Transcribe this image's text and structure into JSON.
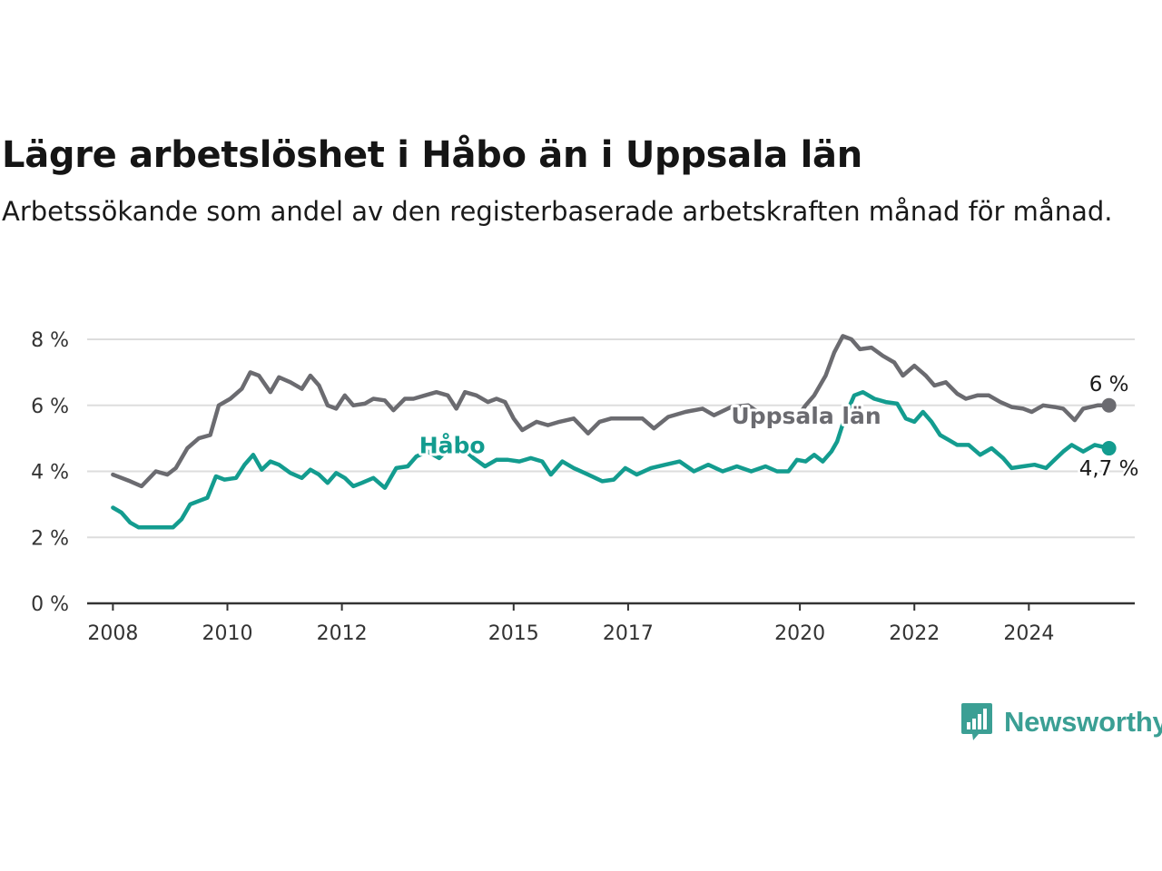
{
  "title": "Lägre arbetslöshet i Håbo än i Uppsala län",
  "subtitle": "Arbetssökande som andel av den registerbaserade arbetskraften månad för månad.",
  "brand": {
    "name": "Newsworthy",
    "icon": "newsworthy-logo-icon",
    "color": "#3b9f94"
  },
  "chart_data": {
    "type": "line",
    "title": "Lägre arbetslöshet i Håbo än i Uppsala län",
    "subtitle": "Arbetssökande som andel av den registerbaserade arbetskraften månad för månad.",
    "xlabel": "",
    "ylabel": "",
    "xlim": [
      2007.55,
      2025.85
    ],
    "ylim": [
      0,
      8
    ],
    "y_ticks": [
      0,
      2,
      4,
      6,
      8
    ],
    "y_tick_labels": [
      "0 %",
      "2 %",
      "4 %",
      "6 %",
      "8 %"
    ],
    "x_ticks": [
      2008,
      2010,
      2012,
      2015,
      2017,
      2020,
      2022,
      2024
    ],
    "x_tick_labels": [
      "2008",
      "2010",
      "2012",
      "2015",
      "2017",
      "2020",
      "2022",
      "2024"
    ],
    "grid": true,
    "legend": "inline labels",
    "series": [
      {
        "name": "Uppsala län",
        "color": "#6b6b70",
        "end_label": "6 %",
        "points": [
          [
            2008.0,
            3.9
          ],
          [
            2008.3,
            3.7
          ],
          [
            2008.5,
            3.55
          ],
          [
            2008.75,
            4.0
          ],
          [
            2008.95,
            3.9
          ],
          [
            2009.1,
            4.1
          ],
          [
            2009.3,
            4.7
          ],
          [
            2009.5,
            5.0
          ],
          [
            2009.7,
            5.1
          ],
          [
            2009.85,
            6.0
          ],
          [
            2010.05,
            6.2
          ],
          [
            2010.25,
            6.5
          ],
          [
            2010.4,
            7.0
          ],
          [
            2010.55,
            6.9
          ],
          [
            2010.75,
            6.4
          ],
          [
            2010.9,
            6.85
          ],
          [
            2011.1,
            6.7
          ],
          [
            2011.3,
            6.5
          ],
          [
            2011.45,
            6.9
          ],
          [
            2011.6,
            6.6
          ],
          [
            2011.75,
            6.0
          ],
          [
            2011.9,
            5.9
          ],
          [
            2012.05,
            6.3
          ],
          [
            2012.2,
            6.0
          ],
          [
            2012.4,
            6.05
          ],
          [
            2012.55,
            6.2
          ],
          [
            2012.75,
            6.15
          ],
          [
            2012.9,
            5.85
          ],
          [
            2013.1,
            6.2
          ],
          [
            2013.25,
            6.2
          ],
          [
            2013.45,
            6.3
          ],
          [
            2013.65,
            6.4
          ],
          [
            2013.85,
            6.3
          ],
          [
            2014.0,
            5.9
          ],
          [
            2014.15,
            6.4
          ],
          [
            2014.35,
            6.3
          ],
          [
            2014.55,
            6.1
          ],
          [
            2014.7,
            6.2
          ],
          [
            2014.85,
            6.1
          ],
          [
            2015.0,
            5.6
          ],
          [
            2015.15,
            5.25
          ],
          [
            2015.4,
            5.5
          ],
          [
            2015.6,
            5.4
          ],
          [
            2015.8,
            5.5
          ],
          [
            2016.05,
            5.6
          ],
          [
            2016.3,
            5.15
          ],
          [
            2016.5,
            5.5
          ],
          [
            2016.7,
            5.6
          ],
          [
            2016.95,
            5.6
          ],
          [
            2017.25,
            5.6
          ],
          [
            2017.45,
            5.3
          ],
          [
            2017.7,
            5.65
          ],
          [
            2018.0,
            5.8
          ],
          [
            2018.3,
            5.9
          ],
          [
            2018.5,
            5.7
          ],
          [
            2018.8,
            5.95
          ],
          [
            2019.1,
            6.0
          ],
          [
            2019.35,
            5.7
          ],
          [
            2019.65,
            5.6
          ],
          [
            2019.9,
            5.5
          ],
          [
            2020.1,
            6.0
          ],
          [
            2020.25,
            6.3
          ],
          [
            2020.45,
            6.9
          ],
          [
            2020.6,
            7.6
          ],
          [
            2020.75,
            8.1
          ],
          [
            2020.9,
            8.0
          ],
          [
            2021.05,
            7.7
          ],
          [
            2021.25,
            7.75
          ],
          [
            2021.45,
            7.5
          ],
          [
            2021.65,
            7.3
          ],
          [
            2021.8,
            6.9
          ],
          [
            2022.0,
            7.2
          ],
          [
            2022.2,
            6.9
          ],
          [
            2022.35,
            6.6
          ],
          [
            2022.55,
            6.7
          ],
          [
            2022.75,
            6.35
          ],
          [
            2022.9,
            6.2
          ],
          [
            2023.1,
            6.3
          ],
          [
            2023.3,
            6.3
          ],
          [
            2023.5,
            6.1
          ],
          [
            2023.7,
            5.95
          ],
          [
            2023.9,
            5.9
          ],
          [
            2024.05,
            5.8
          ],
          [
            2024.25,
            6.0
          ],
          [
            2024.45,
            5.95
          ],
          [
            2024.6,
            5.9
          ],
          [
            2024.8,
            5.55
          ],
          [
            2024.95,
            5.9
          ],
          [
            2025.2,
            6.0
          ],
          [
            2025.4,
            6.0
          ]
        ]
      },
      {
        "name": "Håbo",
        "color": "#139c8f",
        "end_label": "4,7 %",
        "points": [
          [
            2008.0,
            2.9
          ],
          [
            2008.15,
            2.75
          ],
          [
            2008.3,
            2.45
          ],
          [
            2008.45,
            2.3
          ],
          [
            2008.7,
            2.3
          ],
          [
            2008.9,
            2.3
          ],
          [
            2009.05,
            2.3
          ],
          [
            2009.2,
            2.55
          ],
          [
            2009.35,
            3.0
          ],
          [
            2009.5,
            3.1
          ],
          [
            2009.65,
            3.2
          ],
          [
            2009.8,
            3.85
          ],
          [
            2009.95,
            3.75
          ],
          [
            2010.15,
            3.8
          ],
          [
            2010.3,
            4.2
          ],
          [
            2010.45,
            4.5
          ],
          [
            2010.6,
            4.05
          ],
          [
            2010.75,
            4.3
          ],
          [
            2010.9,
            4.2
          ],
          [
            2011.1,
            3.95
          ],
          [
            2011.3,
            3.8
          ],
          [
            2011.45,
            4.05
          ],
          [
            2011.6,
            3.9
          ],
          [
            2011.75,
            3.65
          ],
          [
            2011.9,
            3.95
          ],
          [
            2012.05,
            3.8
          ],
          [
            2012.2,
            3.55
          ],
          [
            2012.35,
            3.65
          ],
          [
            2012.55,
            3.8
          ],
          [
            2012.75,
            3.5
          ],
          [
            2012.95,
            4.1
          ],
          [
            2013.15,
            4.15
          ],
          [
            2013.3,
            4.45
          ],
          [
            2013.5,
            4.6
          ],
          [
            2013.7,
            4.4
          ],
          [
            2013.9,
            4.75
          ],
          [
            2014.1,
            4.7
          ],
          [
            2014.3,
            4.4
          ],
          [
            2014.5,
            4.15
          ],
          [
            2014.7,
            4.35
          ],
          [
            2014.9,
            4.35
          ],
          [
            2015.1,
            4.3
          ],
          [
            2015.3,
            4.4
          ],
          [
            2015.5,
            4.3
          ],
          [
            2015.65,
            3.9
          ],
          [
            2015.85,
            4.3
          ],
          [
            2016.05,
            4.1
          ],
          [
            2016.3,
            3.9
          ],
          [
            2016.55,
            3.7
          ],
          [
            2016.75,
            3.75
          ],
          [
            2016.95,
            4.1
          ],
          [
            2017.15,
            3.9
          ],
          [
            2017.4,
            4.1
          ],
          [
            2017.65,
            4.2
          ],
          [
            2017.9,
            4.3
          ],
          [
            2018.15,
            4.0
          ],
          [
            2018.4,
            4.2
          ],
          [
            2018.65,
            4.0
          ],
          [
            2018.9,
            4.15
          ],
          [
            2019.15,
            4.0
          ],
          [
            2019.4,
            4.15
          ],
          [
            2019.6,
            4.0
          ],
          [
            2019.8,
            4.0
          ],
          [
            2019.95,
            4.35
          ],
          [
            2020.1,
            4.3
          ],
          [
            2020.25,
            4.5
          ],
          [
            2020.4,
            4.3
          ],
          [
            2020.55,
            4.6
          ],
          [
            2020.65,
            4.9
          ],
          [
            2020.8,
            5.7
          ],
          [
            2020.95,
            6.3
          ],
          [
            2021.1,
            6.4
          ],
          [
            2021.3,
            6.2
          ],
          [
            2021.5,
            6.1
          ],
          [
            2021.7,
            6.05
          ],
          [
            2021.85,
            5.6
          ],
          [
            2022.0,
            5.5
          ],
          [
            2022.15,
            5.8
          ],
          [
            2022.3,
            5.5
          ],
          [
            2022.45,
            5.1
          ],
          [
            2022.6,
            4.95
          ],
          [
            2022.75,
            4.8
          ],
          [
            2022.95,
            4.8
          ],
          [
            2023.15,
            4.5
          ],
          [
            2023.35,
            4.7
          ],
          [
            2023.55,
            4.4
          ],
          [
            2023.7,
            4.1
          ],
          [
            2023.9,
            4.15
          ],
          [
            2024.1,
            4.2
          ],
          [
            2024.3,
            4.1
          ],
          [
            2024.45,
            4.35
          ],
          [
            2024.6,
            4.6
          ],
          [
            2024.75,
            4.8
          ],
          [
            2024.95,
            4.6
          ],
          [
            2025.15,
            4.8
          ],
          [
            2025.4,
            4.7
          ]
        ]
      }
    ]
  }
}
